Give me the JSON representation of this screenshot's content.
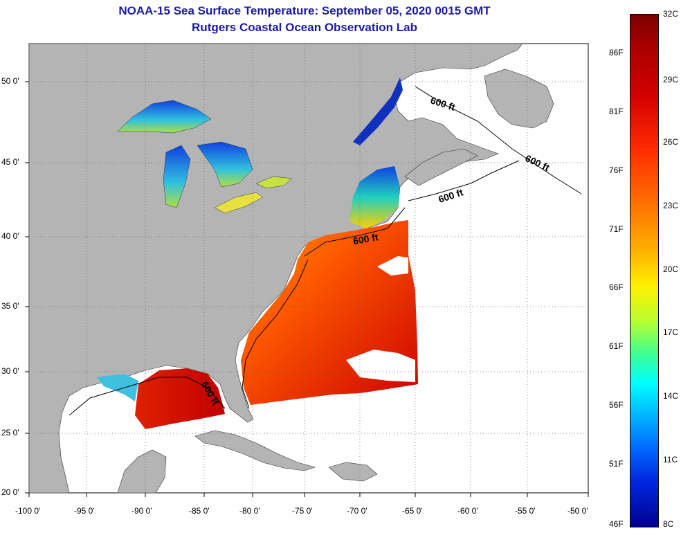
{
  "header": {
    "title_line1": "NOAA-15 Sea Surface Temperature:  September 05, 2020 0015 GMT",
    "title_line2": "Rutgers Coastal Ocean Observation Lab"
  },
  "map": {
    "lon_labels": [
      "-100 0'",
      "-95 0'",
      "-90 0'",
      "-85 0'",
      "-80 0'",
      "-75 0'",
      "-70 0'",
      "-65 0'",
      "-60 0'",
      "-55 0'",
      "-50 0'"
    ],
    "lat_labels": [
      "50 0'",
      "45 0'",
      "40 0'",
      "35 0'",
      "30 0'",
      "25 0'",
      "20 0'"
    ],
    "isobath_labels": [
      "600 ft",
      "600 ft",
      "600 ft",
      "600 ft",
      "600 ft"
    ],
    "colors": {
      "land": "#b4b4b4",
      "no_data": "#ffffff",
      "grid": "#606060"
    }
  },
  "colorbar": {
    "fahrenheit_labels": [
      "86F",
      "81F",
      "76F",
      "71F",
      "66F",
      "61F",
      "56F",
      "51F",
      "46F"
    ],
    "celsius_labels": [
      "32C",
      "29C",
      "26C",
      "23C",
      "20C",
      "17C",
      "14C",
      "11C",
      "8C"
    ]
  }
}
